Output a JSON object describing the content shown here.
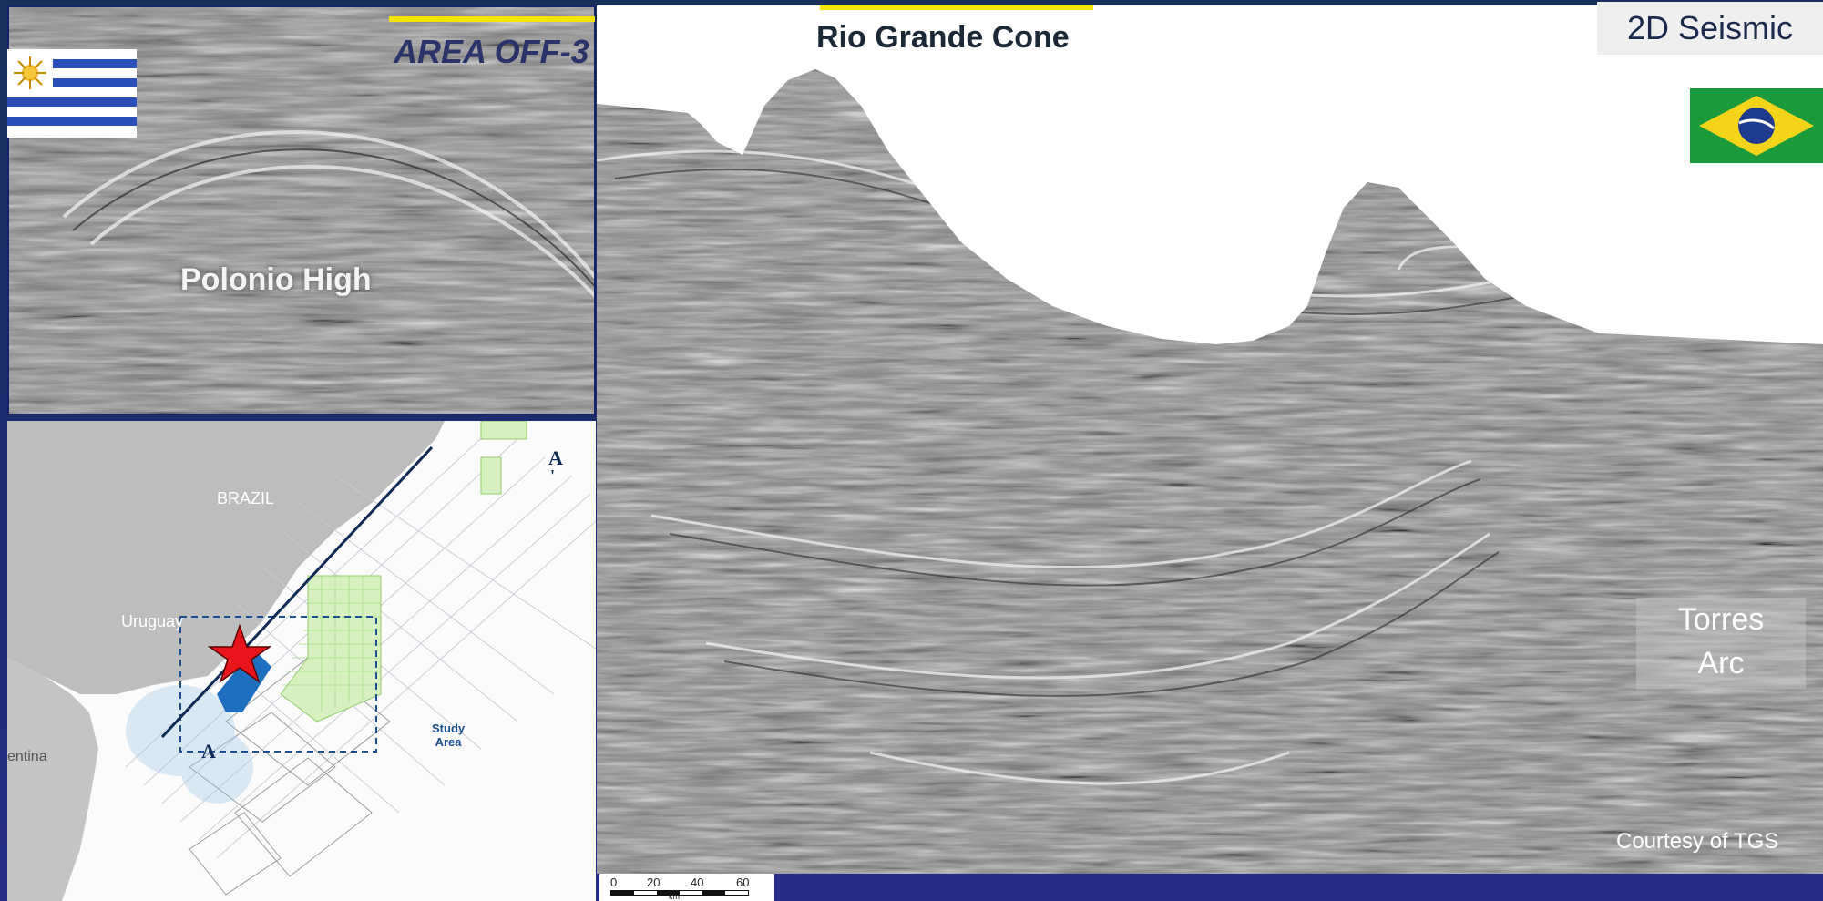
{
  "slide": {
    "title": "2D Seismic",
    "labels": {
      "area": "AREA OFF-3",
      "rio_grande": "Rio Grande Cone",
      "polonio": "Polonio High",
      "torres_line1": "Torres",
      "torres_line2": "Arc",
      "courtesy": "Courtesy of TGS"
    },
    "scale_ticks": [
      "0",
      "20",
      "40",
      "60"
    ],
    "scale_unit": "km"
  },
  "map": {
    "country_brazil": "BRAZIL",
    "country_uruguay": "Uruguay",
    "country_argentina": "entina",
    "line_start": "A",
    "line_end": "A",
    "line_end_mark": "'",
    "study_area_line1": "Study",
    "study_area_line2": "Area"
  },
  "colors": {
    "background": "#1f2b72",
    "accent_yellow": "#f5e400",
    "star_red": "#e8141b",
    "block_blue": "#1e6fc0",
    "title_bg": "#efefef"
  },
  "icons": [
    "uruguay-flag-icon",
    "brazil-flag-icon",
    "red-star-icon"
  ]
}
